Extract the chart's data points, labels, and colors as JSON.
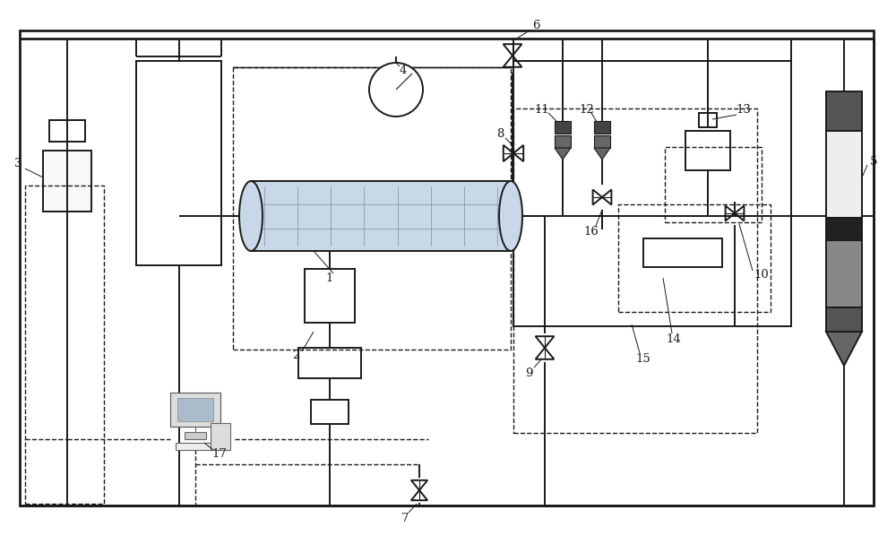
{
  "bg": "#ffffff",
  "lc": "#1a1a1a",
  "lw": 1.4,
  "dlw": 1.0,
  "tlw": 0.8,
  "label_fs": 9.5,
  "figw": 10.0,
  "figh": 5.98
}
